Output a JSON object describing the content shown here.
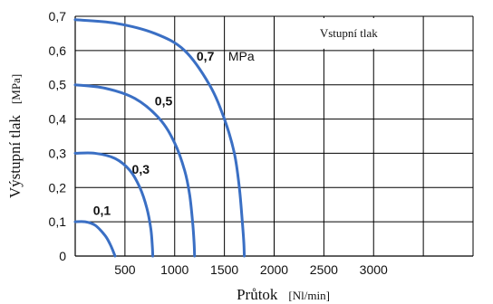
{
  "chart_data": {
    "type": "line",
    "xlabel": "Průtok",
    "xlabel_unit": "[Nl/min]",
    "ylabel": "Výstupní tlak",
    "ylabel_unit": "[MPa]",
    "xlim": [
      0,
      4000
    ],
    "ylim": [
      0,
      0.7
    ],
    "x_ticks": [
      "500",
      "1000",
      "1500",
      "2000",
      "2500",
      "3000"
    ],
    "x_tick_values": [
      500,
      1000,
      1500,
      2000,
      2500,
      3000
    ],
    "y_ticks": [
      "0",
      "0,1",
      "0,2",
      "0,3",
      "0,4",
      "0,5",
      "0,6",
      "0,7"
    ],
    "y_tick_values": [
      0,
      0.1,
      0.2,
      0.3,
      0.4,
      0.5,
      0.6,
      0.7
    ],
    "grid": true,
    "legend_box": "Vstupní tlak",
    "legend_placement": "top-right",
    "unit_annotation": "MPa",
    "series_color": "#3a6fc4",
    "series": [
      {
        "name": "0,1",
        "x": [
          0,
          100,
          200,
          300,
          350,
          380,
          400
        ],
        "y": [
          0.1,
          0.1,
          0.09,
          0.06,
          0.035,
          0.015,
          0
        ]
      },
      {
        "name": "0,3",
        "x": [
          0,
          200,
          400,
          550,
          650,
          720,
          760,
          775,
          780
        ],
        "y": [
          0.3,
          0.3,
          0.285,
          0.25,
          0.2,
          0.14,
          0.08,
          0.03,
          0
        ]
      },
      {
        "name": "0,5",
        "x": [
          0,
          300,
          600,
          850,
          1000,
          1100,
          1150,
          1180,
          1195,
          1200
        ],
        "y": [
          0.5,
          0.49,
          0.46,
          0.4,
          0.33,
          0.25,
          0.18,
          0.1,
          0.04,
          0
        ]
      },
      {
        "name": "0,7",
        "x": [
          0,
          400,
          800,
          1100,
          1350,
          1500,
          1600,
          1650,
          1680,
          1695,
          1700
        ],
        "y": [
          0.69,
          0.68,
          0.65,
          0.6,
          0.5,
          0.4,
          0.3,
          0.2,
          0.1,
          0.04,
          0
        ]
      }
    ],
    "series_label_positions": [
      {
        "name": "0,1",
        "x": 180,
        "y": 0.12
      },
      {
        "name": "0,3",
        "x": 570,
        "y": 0.24
      },
      {
        "name": "0,5",
        "x": 800,
        "y": 0.44
      },
      {
        "name": "0,7",
        "x": 1220,
        "y": 0.57
      }
    ]
  }
}
